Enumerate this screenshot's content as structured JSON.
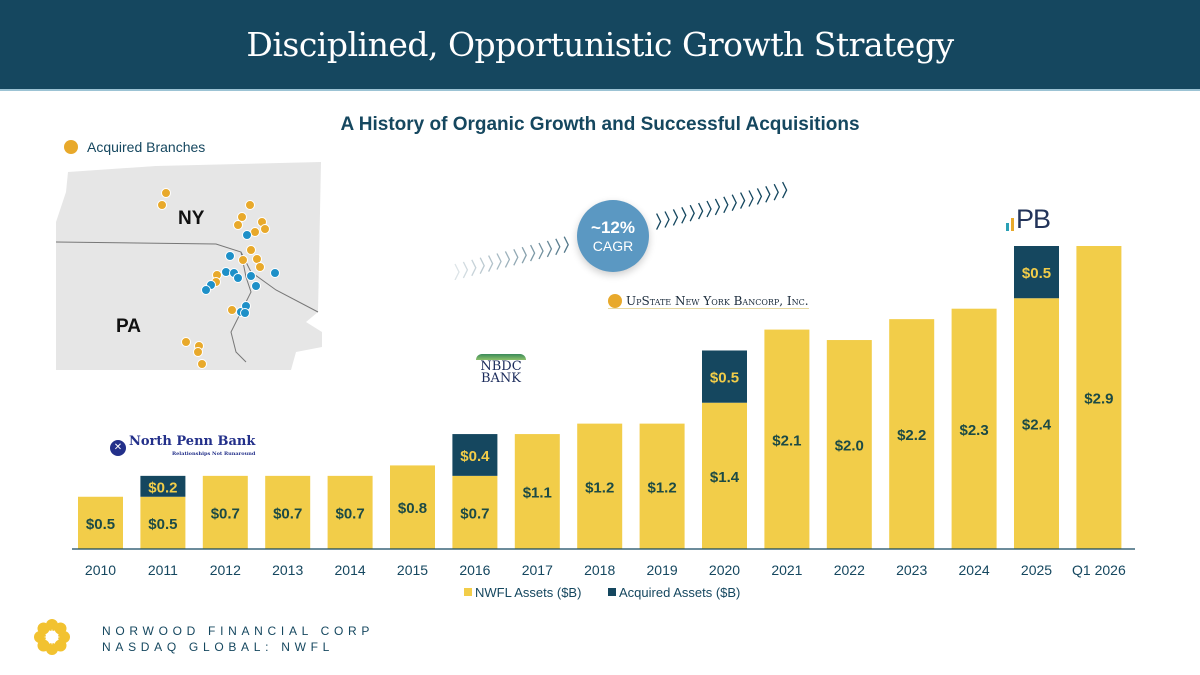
{
  "header": {
    "title": "Disciplined, Opportunistic Growth Strategy"
  },
  "subtitle": "A History of Organic Growth and Successful Acquisitions",
  "map": {
    "legend_label": "Acquired Branches",
    "labels": [
      "NY",
      "PA"
    ],
    "colors": {
      "acquired": "#e8a92b",
      "existing": "#1e90c8"
    }
  },
  "cagr": {
    "value": "~12%",
    "label": "CAGR"
  },
  "logos": {
    "north_penn": {
      "name": "North Penn Bank",
      "tagline": "Relationships Not Runaround"
    },
    "nbdc": {
      "name_line1": "NBDC",
      "name_line2": "BANK"
    },
    "upstate": {
      "name": "UpState New York Bancorp, Inc."
    },
    "pb": {
      "name": "PB"
    }
  },
  "footer": {
    "line1": "NORWOOD FINANCIAL CORP",
    "line2": "NASDAQ GLOBAL: NWFL"
  },
  "colors": {
    "nwfl": "#f2cd49",
    "acquired": "#15475f",
    "header": "#15475f",
    "label_dark": "#1c4a45"
  },
  "chart_data": {
    "type": "bar",
    "stacked": true,
    "title": "A History of Organic Growth and Successful Acquisitions",
    "xlabel": "",
    "ylabel": "",
    "categories": [
      "2010",
      "2011",
      "2012",
      "2013",
      "2014",
      "2015",
      "2016",
      "2017",
      "2018",
      "2019",
      "2020",
      "2021",
      "2022",
      "2023",
      "2024",
      "2025",
      "Q1 2026"
    ],
    "series": [
      {
        "name": "NWFL Assets ($B)",
        "color": "#f2cd49",
        "values": [
          0.5,
          0.5,
          0.7,
          0.7,
          0.7,
          0.8,
          0.7,
          1.1,
          1.2,
          1.2,
          1.4,
          2.1,
          2.0,
          2.2,
          2.3,
          2.4,
          2.9
        ],
        "labels": [
          "$0.5",
          "$0.5",
          "$0.7",
          "$0.7",
          "$0.7",
          "$0.8",
          "$0.7",
          "$1.1",
          "$1.2",
          "$1.2",
          "$1.4",
          "$2.1",
          "$2.0",
          "$2.2",
          "$2.3",
          "$2.4",
          "$2.9"
        ]
      },
      {
        "name": "Acquired Assets ($B)",
        "color": "#15475f",
        "values": [
          null,
          0.2,
          null,
          null,
          null,
          null,
          0.4,
          null,
          null,
          null,
          0.5,
          null,
          null,
          null,
          null,
          0.5,
          null
        ],
        "labels": [
          null,
          "$0.2",
          null,
          null,
          null,
          null,
          "$0.4",
          null,
          null,
          null,
          "$0.5",
          null,
          null,
          null,
          null,
          "$0.5",
          null
        ]
      }
    ],
    "ylim": [
      0,
      2.9
    ],
    "grid": false,
    "legend_position": "bottom"
  }
}
